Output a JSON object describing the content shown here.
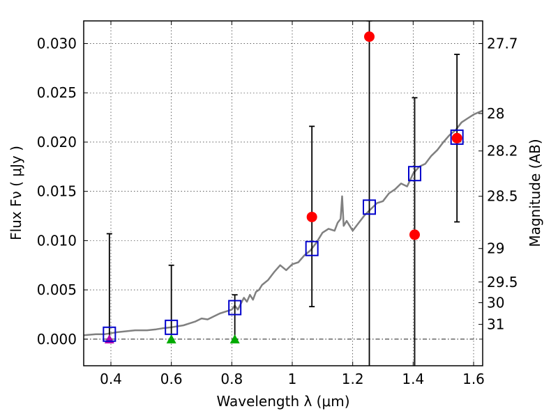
{
  "chart_data": {
    "type": "scatter",
    "xlabel": "Wavelength  λ (μm)",
    "ylabel": "Flux  Fν  ( μJy )",
    "ylabel_right": "Magnitude (AB)",
    "xlim": [
      0.31,
      1.63
    ],
    "ylim": [
      -0.0027,
      0.0323
    ],
    "x_ticks": [
      0.4,
      0.6,
      0.8,
      1.0,
      1.2,
      1.4,
      1.6
    ],
    "x_tick_labels": [
      "0.4",
      "0.6",
      "0.8",
      "1",
      "1.2",
      "1.4",
      "1.6"
    ],
    "y_ticks": [
      0.0,
      0.005,
      0.01,
      0.015,
      0.02,
      0.025,
      0.03
    ],
    "y_tick_labels": [
      "0.000",
      "0.005",
      "0.010",
      "0.015",
      "0.020",
      "0.025",
      "0.030"
    ],
    "right_ticks": [
      {
        "label": "27.7",
        "flux": 0.03
      },
      {
        "label": "28",
        "flux": 0.0229
      },
      {
        "label": "28.2",
        "flux": 0.0191
      },
      {
        "label": "28.5",
        "flux": 0.0145
      },
      {
        "label": "29",
        "flux": 0.0092
      },
      {
        "label": "29.5",
        "flux": 0.0058
      },
      {
        "label": "30",
        "flux": 0.0037
      },
      {
        "label": "31",
        "flux": 0.0015
      }
    ],
    "grid": true,
    "colors": {
      "model": "#808080",
      "observed": "#ff0000",
      "model_flux": "#0000cc",
      "upper_limit_blue": "#b000b0",
      "upper_limit_green": "#00aa00",
      "error_bar": "#000000"
    },
    "series": [
      {
        "name": "model spectrum",
        "style": "line",
        "x": [
          0.31,
          0.35,
          0.38,
          0.4,
          0.42,
          0.45,
          0.48,
          0.5,
          0.52,
          0.55,
          0.57,
          0.6,
          0.62,
          0.64,
          0.66,
          0.68,
          0.7,
          0.72,
          0.74,
          0.76,
          0.78,
          0.8,
          0.81,
          0.82,
          0.83,
          0.84,
          0.85,
          0.86,
          0.87,
          0.88,
          0.89,
          0.9,
          0.92,
          0.94,
          0.96,
          0.98,
          1.0,
          1.02,
          1.04,
          1.06,
          1.08,
          1.1,
          1.12,
          1.14,
          1.15,
          1.16,
          1.165,
          1.17,
          1.18,
          1.2,
          1.22,
          1.24,
          1.26,
          1.28,
          1.3,
          1.32,
          1.34,
          1.36,
          1.38,
          1.4,
          1.42,
          1.44,
          1.46,
          1.48,
          1.5,
          1.52,
          1.54,
          1.56,
          1.58,
          1.6,
          1.63
        ],
        "y": [
          0.0004,
          0.0005,
          0.0005,
          0.0006,
          0.0007,
          0.0008,
          0.0009,
          0.0009,
          0.0009,
          0.001,
          0.0011,
          0.0012,
          0.0013,
          0.0014,
          0.0016,
          0.0018,
          0.0021,
          0.002,
          0.0023,
          0.0026,
          0.0028,
          0.003,
          0.0034,
          0.003,
          0.0036,
          0.0042,
          0.0038,
          0.0045,
          0.004,
          0.0048,
          0.005,
          0.0055,
          0.006,
          0.0068,
          0.0075,
          0.007,
          0.0076,
          0.0078,
          0.0085,
          0.009,
          0.0098,
          0.0108,
          0.0112,
          0.011,
          0.0118,
          0.0122,
          0.0145,
          0.0115,
          0.012,
          0.011,
          0.0118,
          0.0126,
          0.0132,
          0.0138,
          0.014,
          0.0148,
          0.0152,
          0.0158,
          0.0155,
          0.0168,
          0.0175,
          0.0178,
          0.0186,
          0.0192,
          0.02,
          0.0207,
          0.0212,
          0.022,
          0.0224,
          0.0228,
          0.0232
        ]
      },
      {
        "name": "model flux in filters",
        "style": "open-square",
        "x": [
          0.395,
          0.6,
          0.81,
          1.065,
          1.255,
          1.405,
          1.545
        ],
        "y": [
          0.0005,
          0.0012,
          0.0032,
          0.0092,
          0.0134,
          0.0168,
          0.0205
        ]
      },
      {
        "name": "observed flux",
        "style": "filled-circle",
        "x": [
          1.065,
          1.255,
          1.405,
          1.545
        ],
        "y": [
          0.0124,
          0.0307,
          0.0106,
          0.0204
        ],
        "yerr_low": [
          0.0033,
          -0.003,
          -0.003,
          0.0119
        ],
        "yerr_high": [
          0.0216,
          0.0323,
          0.0245,
          0.0289
        ]
      },
      {
        "name": "upper limits",
        "style": "triangle",
        "x": [
          0.395,
          0.6,
          0.81
        ],
        "y": [
          0.0,
          0.0,
          0.0
        ],
        "yerr_low": [
          0.0,
          0.0,
          0.0
        ],
        "yerr_high": [
          0.0107,
          0.0075,
          0.0045
        ],
        "marker_colors": [
          "upper_limit_blue",
          "upper_limit_green",
          "upper_limit_green"
        ]
      }
    ]
  }
}
